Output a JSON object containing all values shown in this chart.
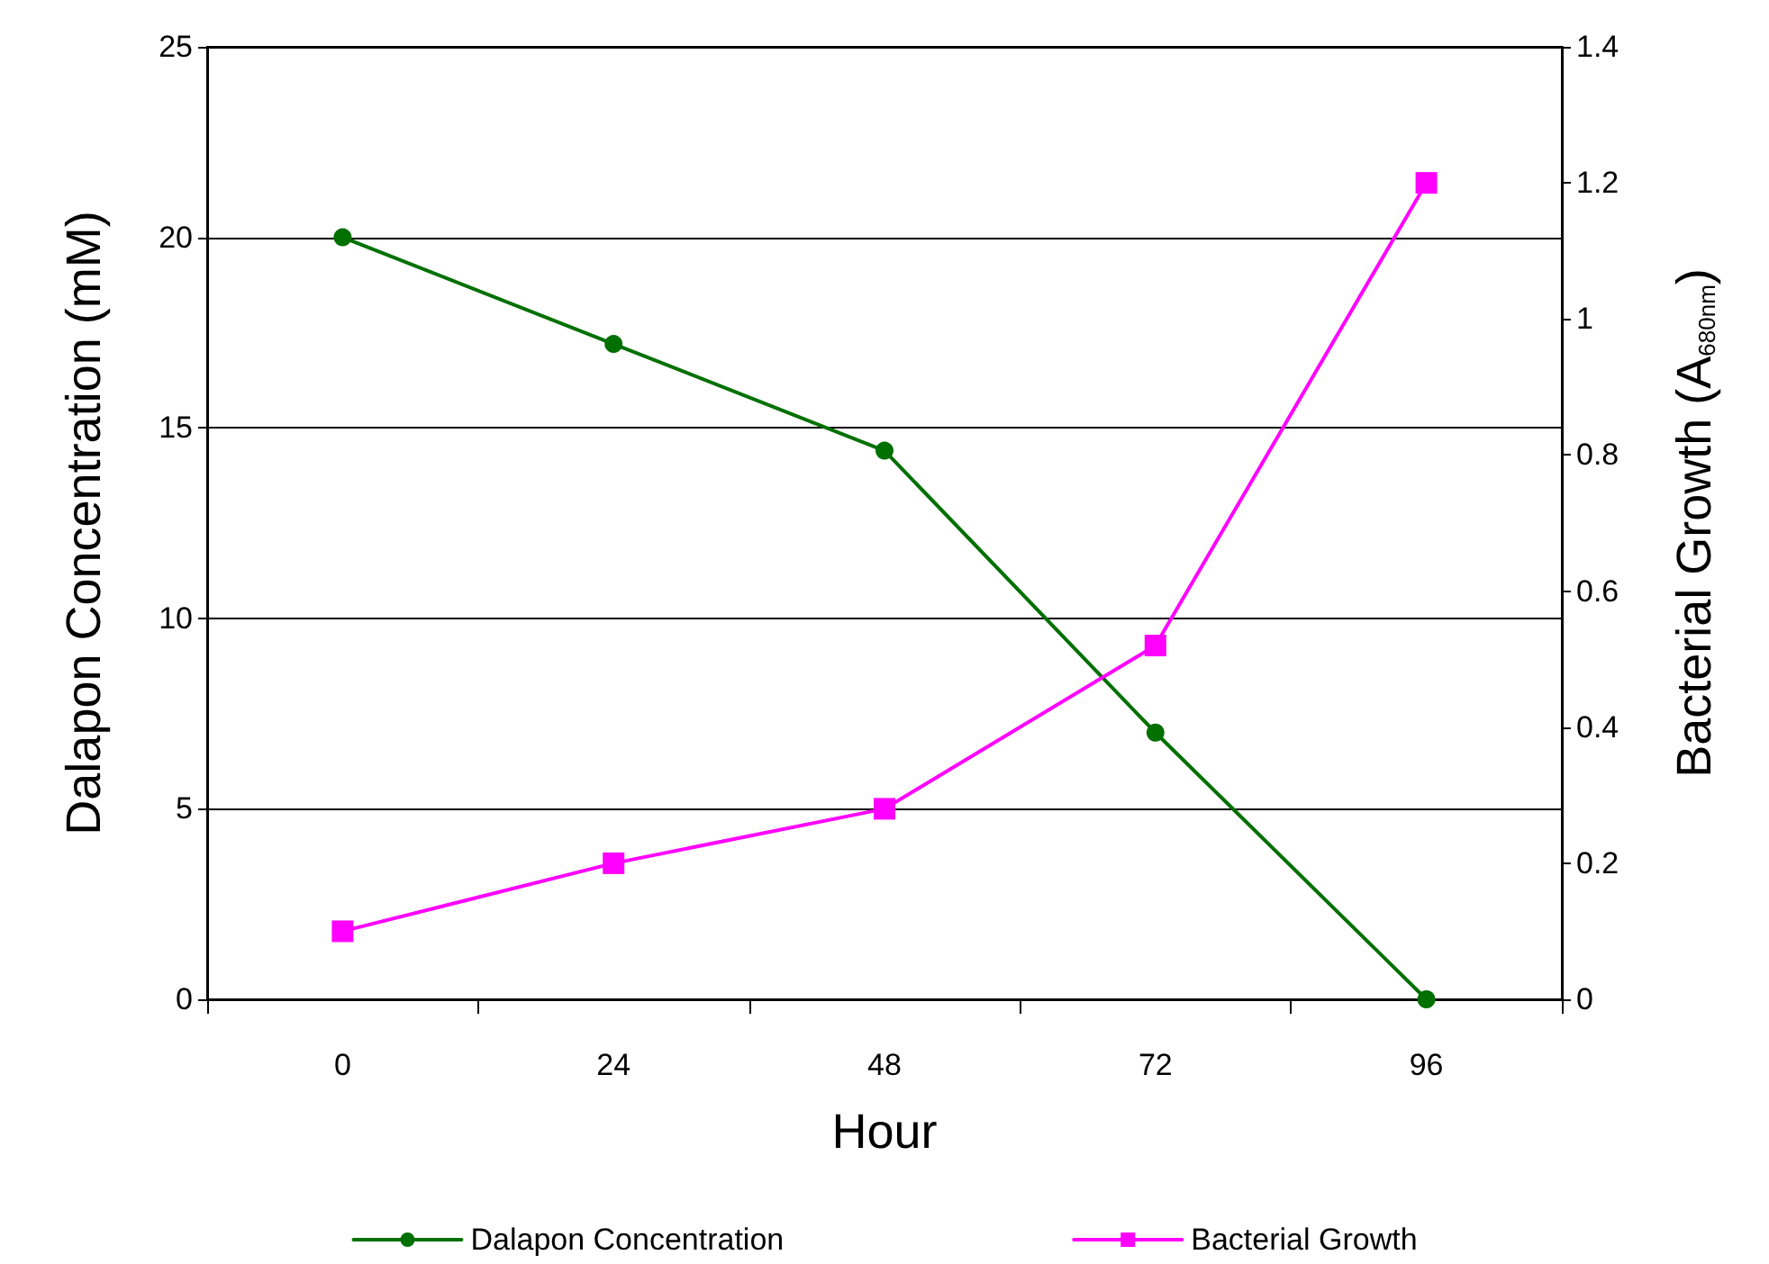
{
  "chart_data": {
    "type": "line",
    "xlabel": "Hour",
    "ylabel": "Dalapon Concentration (mM)",
    "y2label": "Bacterial Growth (A$_{680nm}$)",
    "categories": [
      "0",
      "24",
      "48",
      "72",
      "96"
    ],
    "series": [
      {
        "name": "Dalapon Concentration",
        "color": "#007000",
        "marker": "circle",
        "values": [
          20,
          17.2,
          14.4,
          7,
          0
        ]
      },
      {
        "name": "Bacterial Growth",
        "color": "#ff00ff",
        "marker": "square",
        "axis": "y2",
        "values": [
          0.1,
          0.2,
          0.28,
          0.52,
          1.2
        ]
      }
    ],
    "ylim": [
      0,
      25
    ],
    "yticks": [
      0,
      5,
      10,
      15,
      20,
      25
    ],
    "y2lim": [
      0,
      1.4
    ],
    "y2ticks": [
      0,
      0.2,
      0.4,
      0.6,
      0.8,
      1,
      1.2,
      1.4
    ],
    "grid": "y",
    "legend": "bottom",
    "line_style": "solid"
  }
}
